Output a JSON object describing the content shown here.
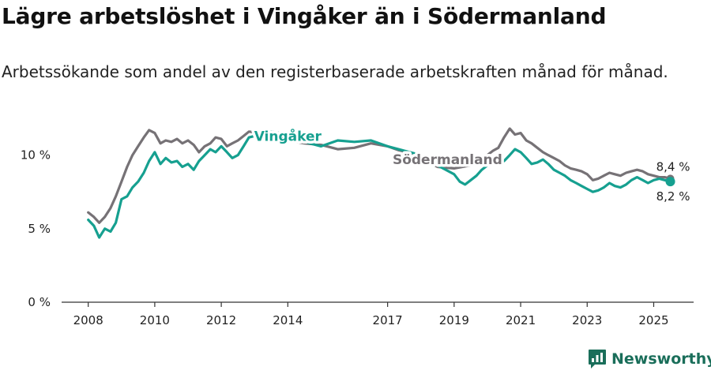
{
  "title": "Lägre arbetslöshet i Vingåker än i Södermanland",
  "subtitle": "Arbetssökande som andel av den registerbaserade arbetskraften månad för månad.",
  "brand": {
    "name": "Newsworthy",
    "icon": "newsworthy-logo-icon",
    "color": "#1a6e5a"
  },
  "colors": {
    "vingaker": "#16a090",
    "sodermanland": "#767276",
    "axis": "#333333"
  },
  "chart_data": {
    "type": "line",
    "x_ticks": [
      "2008",
      "2010",
      "2012",
      "2014",
      "2017",
      "2019",
      "2021",
      "2023",
      "2025"
    ],
    "y_ticks": [
      "0 %",
      "5 %",
      "10 %"
    ],
    "y_tick_values": [
      0,
      5,
      10
    ],
    "ylim": [
      0,
      12.5
    ],
    "xlim": [
      2007.2,
      2026.2
    ],
    "grid": false,
    "series": [
      {
        "name": "Södermanland",
        "color": "#767276",
        "end_label": "8,4 %",
        "x": [
          2008.0,
          2008.17,
          2008.33,
          2008.5,
          2008.67,
          2008.83,
          2009.0,
          2009.17,
          2009.33,
          2009.5,
          2009.67,
          2009.83,
          2010.0,
          2010.17,
          2010.33,
          2010.5,
          2010.67,
          2010.83,
          2011.0,
          2011.17,
          2011.33,
          2011.5,
          2011.67,
          2011.83,
          2012.0,
          2012.17,
          2012.33,
          2012.5,
          2012.67,
          2012.83,
          2013.5,
          2014.0,
          2014.5,
          2015.0,
          2015.5,
          2016.0,
          2016.5,
          2017.0,
          2017.5,
          2018.0,
          2018.5,
          2019.0,
          2019.5,
          2020.0,
          2020.17,
          2020.33,
          2020.5,
          2020.67,
          2020.83,
          2021.0,
          2021.17,
          2021.33,
          2021.5,
          2021.67,
          2021.83,
          2022.0,
          2022.17,
          2022.33,
          2022.5,
          2022.67,
          2022.83,
          2023.0,
          2023.17,
          2023.33,
          2023.5,
          2023.67,
          2023.83,
          2024.0,
          2024.17,
          2024.33,
          2024.5,
          2024.67,
          2024.83,
          2025.0,
          2025.17,
          2025.33,
          2025.5
        ],
        "values": [
          6.1,
          5.8,
          5.4,
          5.8,
          6.4,
          7.2,
          8.2,
          9.2,
          10.0,
          10.6,
          11.2,
          11.7,
          11.5,
          10.8,
          11.0,
          10.9,
          11.1,
          10.8,
          11.0,
          10.7,
          10.2,
          10.6,
          10.8,
          11.2,
          11.1,
          10.6,
          10.8,
          11.0,
          11.3,
          11.6,
          11.4,
          11.0,
          10.8,
          10.7,
          10.4,
          10.5,
          10.8,
          10.6,
          10.2,
          9.8,
          9.2,
          9.1,
          9.3,
          10.0,
          10.3,
          10.5,
          11.2,
          11.8,
          11.4,
          11.5,
          11.0,
          10.8,
          10.5,
          10.2,
          10.0,
          9.8,
          9.6,
          9.3,
          9.1,
          9.0,
          8.9,
          8.7,
          8.3,
          8.4,
          8.6,
          8.8,
          8.7,
          8.6,
          8.8,
          8.9,
          9.0,
          8.9,
          8.7,
          8.6,
          8.5,
          8.5,
          8.4
        ]
      },
      {
        "name": "Vingåker",
        "color": "#16a090",
        "end_label": "8,2 %",
        "x": [
          2008.0,
          2008.17,
          2008.33,
          2008.5,
          2008.67,
          2008.83,
          2009.0,
          2009.17,
          2009.33,
          2009.5,
          2009.67,
          2009.83,
          2010.0,
          2010.17,
          2010.33,
          2010.5,
          2010.67,
          2010.83,
          2011.0,
          2011.17,
          2011.33,
          2011.5,
          2011.67,
          2011.83,
          2012.0,
          2012.17,
          2012.33,
          2012.5,
          2012.67,
          2012.83,
          2013.5,
          2014.0,
          2014.5,
          2015.0,
          2015.5,
          2016.0,
          2016.5,
          2017.0,
          2017.5,
          2018.0,
          2018.5,
          2019.0,
          2019.17,
          2019.33,
          2019.5,
          2019.67,
          2019.83,
          2020.0,
          2020.5,
          2020.67,
          2020.83,
          2021.0,
          2021.17,
          2021.33,
          2021.5,
          2021.67,
          2021.83,
          2022.0,
          2022.17,
          2022.33,
          2022.5,
          2022.67,
          2022.83,
          2023.0,
          2023.17,
          2023.33,
          2023.5,
          2023.67,
          2023.83,
          2024.0,
          2024.17,
          2024.33,
          2024.5,
          2024.67,
          2024.83,
          2025.0,
          2025.17,
          2025.33,
          2025.5
        ],
        "values": [
          5.6,
          5.2,
          4.4,
          5.0,
          4.8,
          5.4,
          7.0,
          7.2,
          7.8,
          8.2,
          8.8,
          9.6,
          10.2,
          9.4,
          9.8,
          9.5,
          9.6,
          9.2,
          9.4,
          9.0,
          9.6,
          10.0,
          10.4,
          10.2,
          10.6,
          10.2,
          9.8,
          10.0,
          10.6,
          11.2,
          11.6,
          11.4,
          10.9,
          10.6,
          11.0,
          10.9,
          11.0,
          10.6,
          10.3,
          10.0,
          9.3,
          8.7,
          8.2,
          8.0,
          8.3,
          8.6,
          9.0,
          9.3,
          9.6,
          10.0,
          10.4,
          10.2,
          9.8,
          9.4,
          9.5,
          9.7,
          9.4,
          9.0,
          8.8,
          8.6,
          8.3,
          8.1,
          7.9,
          7.7,
          7.5,
          7.6,
          7.8,
          8.1,
          7.9,
          7.8,
          8.0,
          8.3,
          8.5,
          8.3,
          8.1,
          8.3,
          8.4,
          8.3,
          8.2
        ]
      }
    ]
  }
}
